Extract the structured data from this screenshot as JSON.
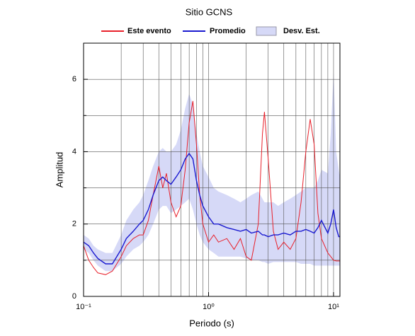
{
  "chart_data": {
    "type": "line",
    "title": "Sitio GCNS",
    "xlabel": "Periodo (s)",
    "ylabel": "Amplitud",
    "xscale": "log",
    "xlim": [
      0.1,
      11.25
    ],
    "ylim": [
      0,
      7
    ],
    "xticks": [
      {
        "value": 0.1,
        "label": "10⁻¹"
      },
      {
        "value": 1,
        "label": "10⁰"
      },
      {
        "value": 10,
        "label": "10¹"
      }
    ],
    "yticks": [
      0,
      2,
      4,
      6
    ],
    "yminor": [
      1,
      3,
      5
    ],
    "grid": true,
    "legend": "top",
    "x": [
      0.1,
      0.11,
      0.12,
      0.13,
      0.15,
      0.17,
      0.2,
      0.22,
      0.25,
      0.28,
      0.3,
      0.33,
      0.36,
      0.4,
      0.43,
      0.46,
      0.5,
      0.55,
      0.6,
      0.65,
      0.7,
      0.75,
      0.8,
      0.85,
      0.9,
      1.0,
      1.1,
      1.2,
      1.4,
      1.6,
      1.8,
      2.0,
      2.2,
      2.5,
      2.7,
      2.8,
      3.0,
      3.3,
      3.6,
      4.0,
      4.5,
      5.0,
      5.5,
      6.0,
      6.5,
      7.0,
      7.5,
      8,
      9,
      9.5,
      10,
      10.5,
      11,
      11.25
    ],
    "band": {
      "name": "Desv. Est.",
      "color": "#d6d9f7",
      "upper": [
        1.7,
        1.6,
        1.4,
        1.3,
        1.2,
        1.2,
        1.7,
        2.1,
        2.4,
        2.6,
        2.8,
        3.2,
        3.6,
        4.0,
        4.1,
        4.0,
        4.0,
        4.2,
        4.6,
        5.2,
        5.6,
        5.3,
        4.5,
        4.0,
        3.6,
        3.3,
        3.0,
        2.9,
        2.8,
        2.7,
        2.6,
        2.7,
        2.8,
        2.9,
        2.7,
        2.6,
        2.6,
        2.6,
        2.5,
        2.6,
        2.7,
        2.8,
        2.9,
        3.0,
        3.0,
        3.0,
        3.2,
        3.5,
        3.4,
        4.5,
        6.2,
        4.0,
        3.5,
        3.3
      ],
      "lower": [
        1.3,
        1.2,
        1.0,
        0.85,
        0.7,
        0.7,
        0.9,
        1.1,
        1.3,
        1.4,
        1.5,
        1.7,
        2.0,
        2.4,
        2.5,
        2.5,
        2.3,
        2.4,
        2.5,
        2.6,
        2.7,
        2.4,
        2.0,
        1.7,
        1.5,
        1.3,
        1.2,
        1.1,
        1.1,
        1.1,
        1.1,
        1.05,
        1.0,
        1.0,
        0.95,
        0.95,
        0.9,
        0.95,
        0.95,
        0.95,
        0.95,
        0.95,
        0.9,
        0.9,
        0.9,
        0.85,
        0.85,
        0.85,
        0.85,
        0.85,
        0.85,
        0.85,
        0.85,
        0.85
      ]
    },
    "series": [
      {
        "name": "Este evento",
        "color": "#e8202a",
        "values": [
          1.4,
          1.0,
          0.8,
          0.65,
          0.6,
          0.7,
          1.1,
          1.4,
          1.6,
          1.7,
          1.7,
          2.1,
          2.8,
          3.6,
          3.0,
          3.4,
          2.6,
          2.2,
          2.5,
          3.5,
          4.8,
          5.4,
          4.2,
          2.8,
          2.0,
          1.5,
          1.7,
          1.5,
          1.6,
          1.3,
          1.6,
          1.1,
          1.0,
          2.0,
          4.5,
          5.1,
          3.8,
          1.8,
          1.3,
          1.5,
          1.3,
          1.6,
          2.6,
          4.0,
          4.9,
          4.2,
          2.3,
          1.6,
          1.2,
          1.1,
          1.0,
          0.98,
          0.98,
          0.98
        ]
      },
      {
        "name": "Promedio",
        "color": "#1a1ad0",
        "values": [
          1.5,
          1.4,
          1.2,
          1.05,
          0.9,
          0.9,
          1.3,
          1.6,
          1.8,
          2.0,
          2.1,
          2.4,
          2.8,
          3.2,
          3.3,
          3.2,
          3.1,
          3.3,
          3.5,
          3.8,
          3.95,
          3.8,
          3.2,
          2.8,
          2.5,
          2.2,
          2.0,
          2.0,
          1.9,
          1.85,
          1.8,
          1.85,
          1.75,
          1.8,
          1.7,
          1.7,
          1.65,
          1.7,
          1.7,
          1.75,
          1.7,
          1.8,
          1.8,
          1.85,
          1.8,
          1.75,
          1.9,
          2.1,
          1.75,
          2.0,
          2.4,
          1.9,
          1.65,
          1.65
        ]
      }
    ]
  }
}
